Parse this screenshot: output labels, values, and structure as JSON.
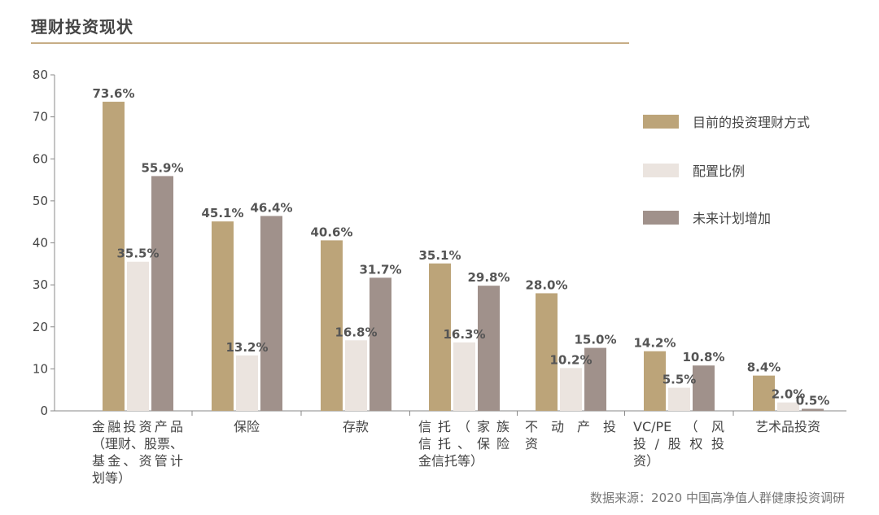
{
  "header": {
    "title": "理财投资现状"
  },
  "source": "数据来源：2020 中国高净值人群健康投资调研",
  "colors": {
    "accent": "#c7ad86",
    "series1": "#bca479",
    "series2": "#ebe4df",
    "series3": "#a0918b"
  },
  "chart_data": {
    "type": "bar",
    "title": "理财投资现状",
    "xlabel": "",
    "ylabel": "",
    "ylim": [
      0,
      80
    ],
    "yticks": [
      0,
      10,
      20,
      30,
      40,
      50,
      60,
      70,
      80
    ],
    "grid": false,
    "legend_position": "right",
    "categories": [
      [
        "金融投资产品",
        "（理财、股票、",
        "基金、资管计",
        "划等）"
      ],
      [
        "保险"
      ],
      [
        "存款"
      ],
      [
        "信托（家族",
        "信托、保险",
        "金信托等）"
      ],
      [
        "不动产投",
        "资"
      ],
      [
        "VC/PE（风",
        "投/股权投",
        "资）"
      ],
      [
        "艺术品投资"
      ]
    ],
    "series": [
      {
        "name": "目前的投资理财方式",
        "values": [
          73.6,
          45.1,
          40.6,
          35.1,
          28.0,
          14.2,
          8.4
        ],
        "labels": [
          "73.6%",
          "45.1%",
          "40.6%",
          "35.1%",
          "28.0%",
          "14.2%",
          "8.4%"
        ]
      },
      {
        "name": "配置比例",
        "values": [
          35.5,
          13.2,
          16.8,
          16.3,
          10.2,
          5.5,
          2.0
        ],
        "labels": [
          "35.5%",
          "13.2%",
          "16.8%",
          "16.3%",
          "10.2%",
          "5.5%",
          "2.0%"
        ]
      },
      {
        "name": "未来计划增加",
        "values": [
          55.9,
          46.4,
          31.7,
          29.8,
          15.0,
          10.8,
          0.5
        ],
        "labels": [
          "55.9%",
          "46.4%",
          "31.7%",
          "29.8%",
          "15.0%",
          "10.8%",
          "0.5%"
        ]
      }
    ]
  }
}
